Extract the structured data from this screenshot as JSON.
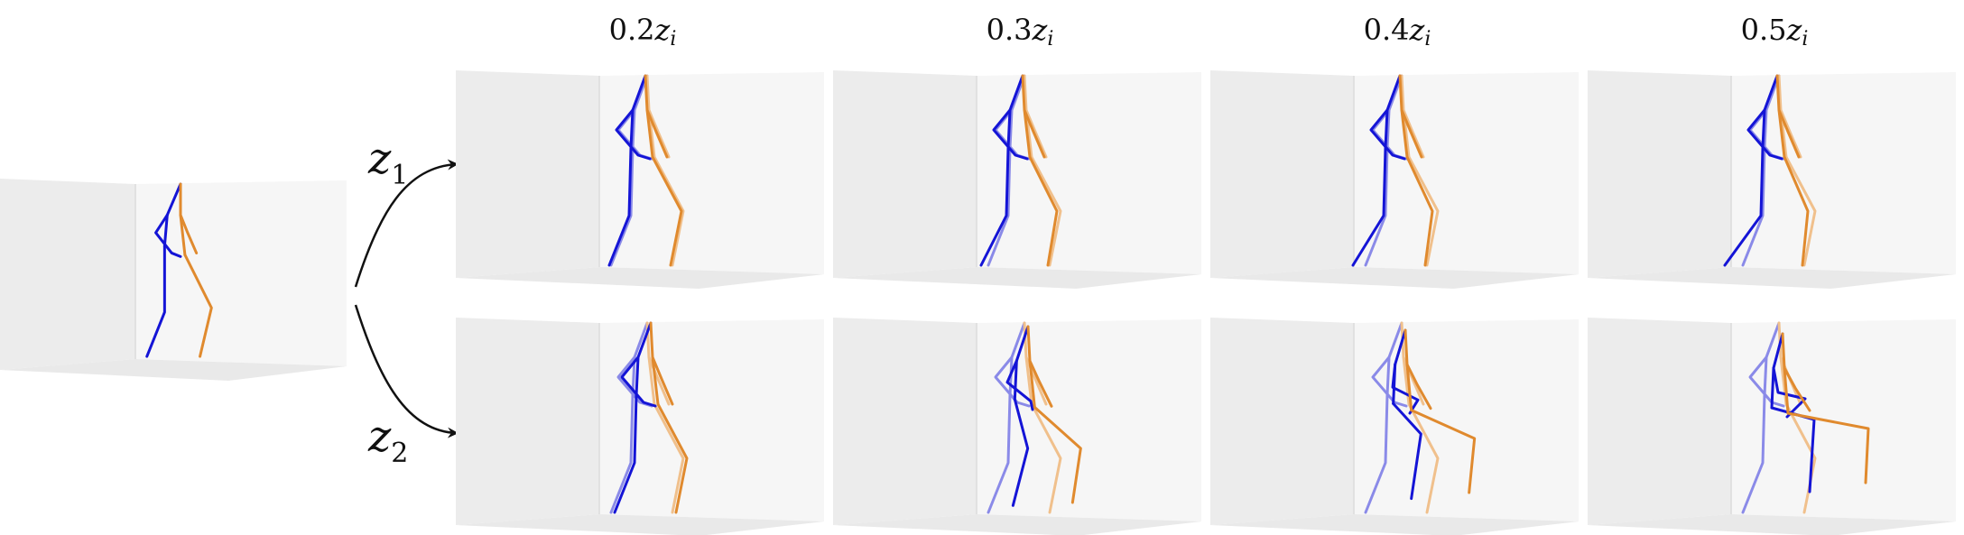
{
  "columns": [
    {
      "coef": "0.2",
      "var": "z",
      "sub": "i"
    },
    {
      "coef": "0.3",
      "var": "z",
      "sub": "i"
    },
    {
      "coef": "0.4",
      "var": "z",
      "sub": "i"
    },
    {
      "coef": "0.5",
      "var": "z",
      "sub": "i"
    }
  ],
  "rows": [
    {
      "var": "z",
      "sub": "1"
    },
    {
      "var": "z",
      "sub": "2"
    }
  ],
  "colors": {
    "left_side": "#1414d6",
    "right_side": "#e08a2e",
    "left_side_faded": "#8a8ae8",
    "right_side_faded": "#f0c08c"
  }
}
